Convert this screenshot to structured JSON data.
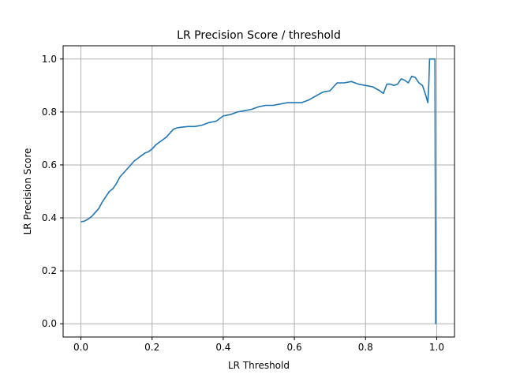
{
  "chart_data": {
    "type": "line",
    "title": "LR Precision Score / threshold",
    "xlabel": "LR Threshold",
    "ylabel": "LR Precision Score",
    "xlim": [
      -0.05,
      1.05
    ],
    "ylim": [
      -0.05,
      1.05
    ],
    "xticks": [
      0.0,
      0.2,
      0.4,
      0.6,
      0.8,
      1.0
    ],
    "xtick_labels": [
      "0.0",
      "0.2",
      "0.4",
      "0.6",
      "0.8",
      "1.0"
    ],
    "yticks": [
      0.0,
      0.2,
      0.4,
      0.6,
      0.8,
      1.0
    ],
    "ytick_labels": [
      "0.0",
      "0.2",
      "0.4",
      "0.6",
      "0.8",
      "1.0"
    ],
    "grid": true,
    "legend": "none",
    "line_color": "#1f77b4",
    "series": [
      {
        "x": [
          0.0,
          0.01,
          0.02,
          0.03,
          0.04,
          0.05,
          0.06,
          0.07,
          0.08,
          0.09,
          0.1,
          0.11,
          0.12,
          0.13,
          0.14,
          0.15,
          0.16,
          0.17,
          0.18,
          0.19,
          0.2,
          0.21,
          0.22,
          0.23,
          0.24,
          0.25,
          0.26,
          0.27,
          0.28,
          0.3,
          0.32,
          0.34,
          0.36,
          0.38,
          0.4,
          0.42,
          0.44,
          0.46,
          0.48,
          0.5,
          0.52,
          0.54,
          0.56,
          0.58,
          0.6,
          0.62,
          0.64,
          0.66,
          0.68,
          0.7,
          0.72,
          0.74,
          0.76,
          0.78,
          0.8,
          0.82,
          0.84,
          0.85,
          0.86,
          0.87,
          0.88,
          0.89,
          0.9,
          0.91,
          0.92,
          0.93,
          0.94,
          0.95,
          0.96,
          0.965,
          0.97,
          0.975,
          0.978,
          0.98,
          0.985,
          0.99,
          0.995,
          0.997,
          0.998
        ],
        "y": [
          0.385,
          0.388,
          0.395,
          0.405,
          0.42,
          0.435,
          0.46,
          0.48,
          0.5,
          0.51,
          0.53,
          0.555,
          0.57,
          0.585,
          0.6,
          0.615,
          0.625,
          0.635,
          0.645,
          0.65,
          0.66,
          0.675,
          0.685,
          0.695,
          0.705,
          0.72,
          0.735,
          0.74,
          0.742,
          0.745,
          0.745,
          0.75,
          0.76,
          0.765,
          0.785,
          0.79,
          0.8,
          0.805,
          0.81,
          0.82,
          0.825,
          0.825,
          0.83,
          0.835,
          0.835,
          0.835,
          0.845,
          0.86,
          0.875,
          0.88,
          0.91,
          0.91,
          0.915,
          0.905,
          0.9,
          0.895,
          0.88,
          0.87,
          0.905,
          0.905,
          0.9,
          0.905,
          0.925,
          0.92,
          0.91,
          0.935,
          0.93,
          0.91,
          0.9,
          0.88,
          0.86,
          0.835,
          0.91,
          1.0,
          1.0,
          1.0,
          1.0,
          0.0,
          0.0
        ]
      }
    ]
  }
}
